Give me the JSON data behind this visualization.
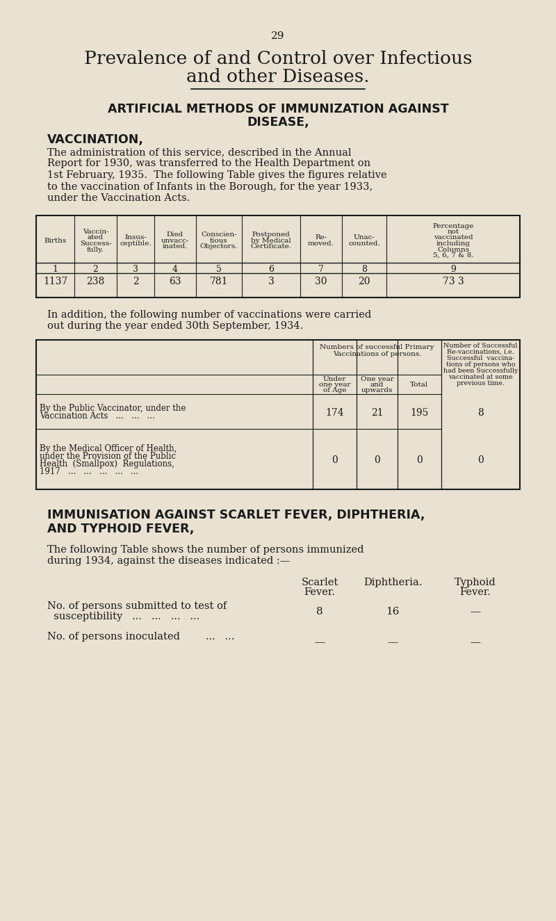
{
  "bg_color": "#e9e2d3",
  "text_color": "#1a1a1a",
  "page_number": "29",
  "title_line1": "Prevalence of and Control over Infectious",
  "title_line2": "and other Diseases.",
  "section_heading1": "ARTIFICIAL METHODS OF IMMUNIZATION AGAINST",
  "section_heading2": "DISEASE,",
  "sub_heading1": "VACCINATION,",
  "para1_lines": [
    "The administration of this service, described in the Annual",
    "Report for 1930, was transferred to the Health Department on",
    "1st February, 1935.  The following Table gives the figures relative",
    "to the vaccination of Infants in the Borough, for the year 1933,",
    "under the Vaccination Acts."
  ],
  "table1_col_headers": [
    "Births",
    "Vaccin-\nated\nSuccess-\nfully.",
    "Insus-\nceptible.",
    "Died\nunvacc-\ninated.",
    "Conscien-\ntious\nObjectors.",
    "Postponed\nby Medical\nCertificate.",
    "Re-\nmoved.",
    "Unac-\ncounted.",
    "Percentage\nnot\nvaccinated\nincluding\nColumns\n5, 6, 7 & 8."
  ],
  "table1_col_numbers": [
    "1",
    "2",
    "3",
    "4",
    "5",
    "6",
    "7",
    "8",
    "9"
  ],
  "table1_data": [
    "1137",
    "238",
    "2",
    "63",
    "781",
    "3",
    "30",
    "20",
    "73 3"
  ],
  "para2_lines": [
    "In addition, the following number of vaccinations were carried",
    "out during the year ended 30th September, 1934."
  ],
  "table2_row_headers": [
    "By the Public Vaccinator, under the\nVaccination Acts   ...   ...   ...",
    "By the Medical Officer of Health,\nunder the Provision of the Public\nHealth  (Smallpox)  Regulations,\n1917   ...   ...   ...   ...   ..."
  ],
  "table2_sub_col_headers": [
    "Under\none year\nof Age",
    "One year\nand\nupwards",
    "Total"
  ],
  "table2_col_span_header1_lines": [
    "Numbers of successful Primary",
    "Vaccinations of persons."
  ],
  "table2_col_span_header2_lines": [
    "Number of Successful",
    "Re-vaccinations, i.e.",
    "Successful  vaccina-",
    "tions of persons who",
    "had been Successfully",
    "vaccinated at some",
    "previous time."
  ],
  "table2_data": [
    [
      "174",
      "21",
      "195",
      "8"
    ],
    [
      "0",
      "0",
      "0",
      "0"
    ]
  ],
  "section_heading3": "IMMUNISATION AGAINST SCARLET FEVER, DIPHTHERIA,",
  "section_heading4": "AND TYPHOID FEVER,",
  "para3_lines": [
    "The following Table shows the number of persons immunized",
    "during 1934, against the diseases indicated :—"
  ],
  "table3_col_headers": [
    "Scarlet\nFever.",
    "Diphtheria.",
    "Typhoid\nFever."
  ],
  "table3_row_headers": [
    "No. of persons submitted to test of\n  susceptibility   ...   ...   ...   ...",
    "No. of persons inoculated        ...   ..."
  ],
  "table3_data": [
    [
      "8",
      "16",
      "—"
    ],
    [
      "—",
      "—",
      "—"
    ]
  ]
}
